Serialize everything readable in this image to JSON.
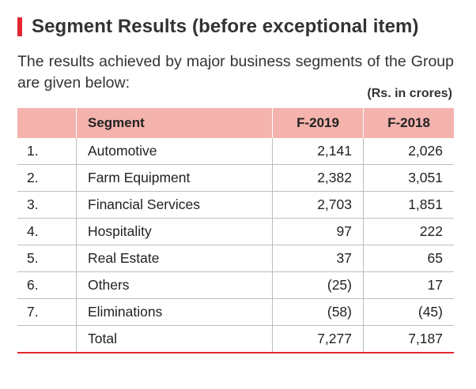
{
  "heading": {
    "title": "Segment Results (before exceptional item)"
  },
  "intro": "The results achieved by major business segments of the Group are given below:",
  "unit_note": "(Rs. in crores)",
  "table": {
    "headers": {
      "index": "",
      "segment": "Segment",
      "y1": "F-2019",
      "y2": "F-2018"
    },
    "rows": [
      {
        "idx": "1.",
        "segment": "Automotive",
        "y1": "2,141",
        "y2": "2,026"
      },
      {
        "idx": "2.",
        "segment": "Farm Equipment",
        "y1": "2,382",
        "y2": "3,051"
      },
      {
        "idx": "3.",
        "segment": "Financial Services",
        "y1": "2,703",
        "y2": "1,851"
      },
      {
        "idx": "4.",
        "segment": "Hospitality",
        "y1": "97",
        "y2": "222"
      },
      {
        "idx": "5.",
        "segment": "Real Estate",
        "y1": "37",
        "y2": "65"
      },
      {
        "idx": "6.",
        "segment": "Others",
        "y1": "(25)",
        "y2": "17"
      },
      {
        "idx": "7.",
        "segment": "Eliminations",
        "y1": "(58)",
        "y2": "(45)"
      },
      {
        "idx": "",
        "segment": "Total",
        "y1": "7,277",
        "y2": "7,187"
      }
    ]
  },
  "colors": {
    "accent": "#e3262f",
    "header_fill": "#f4b3ad"
  }
}
